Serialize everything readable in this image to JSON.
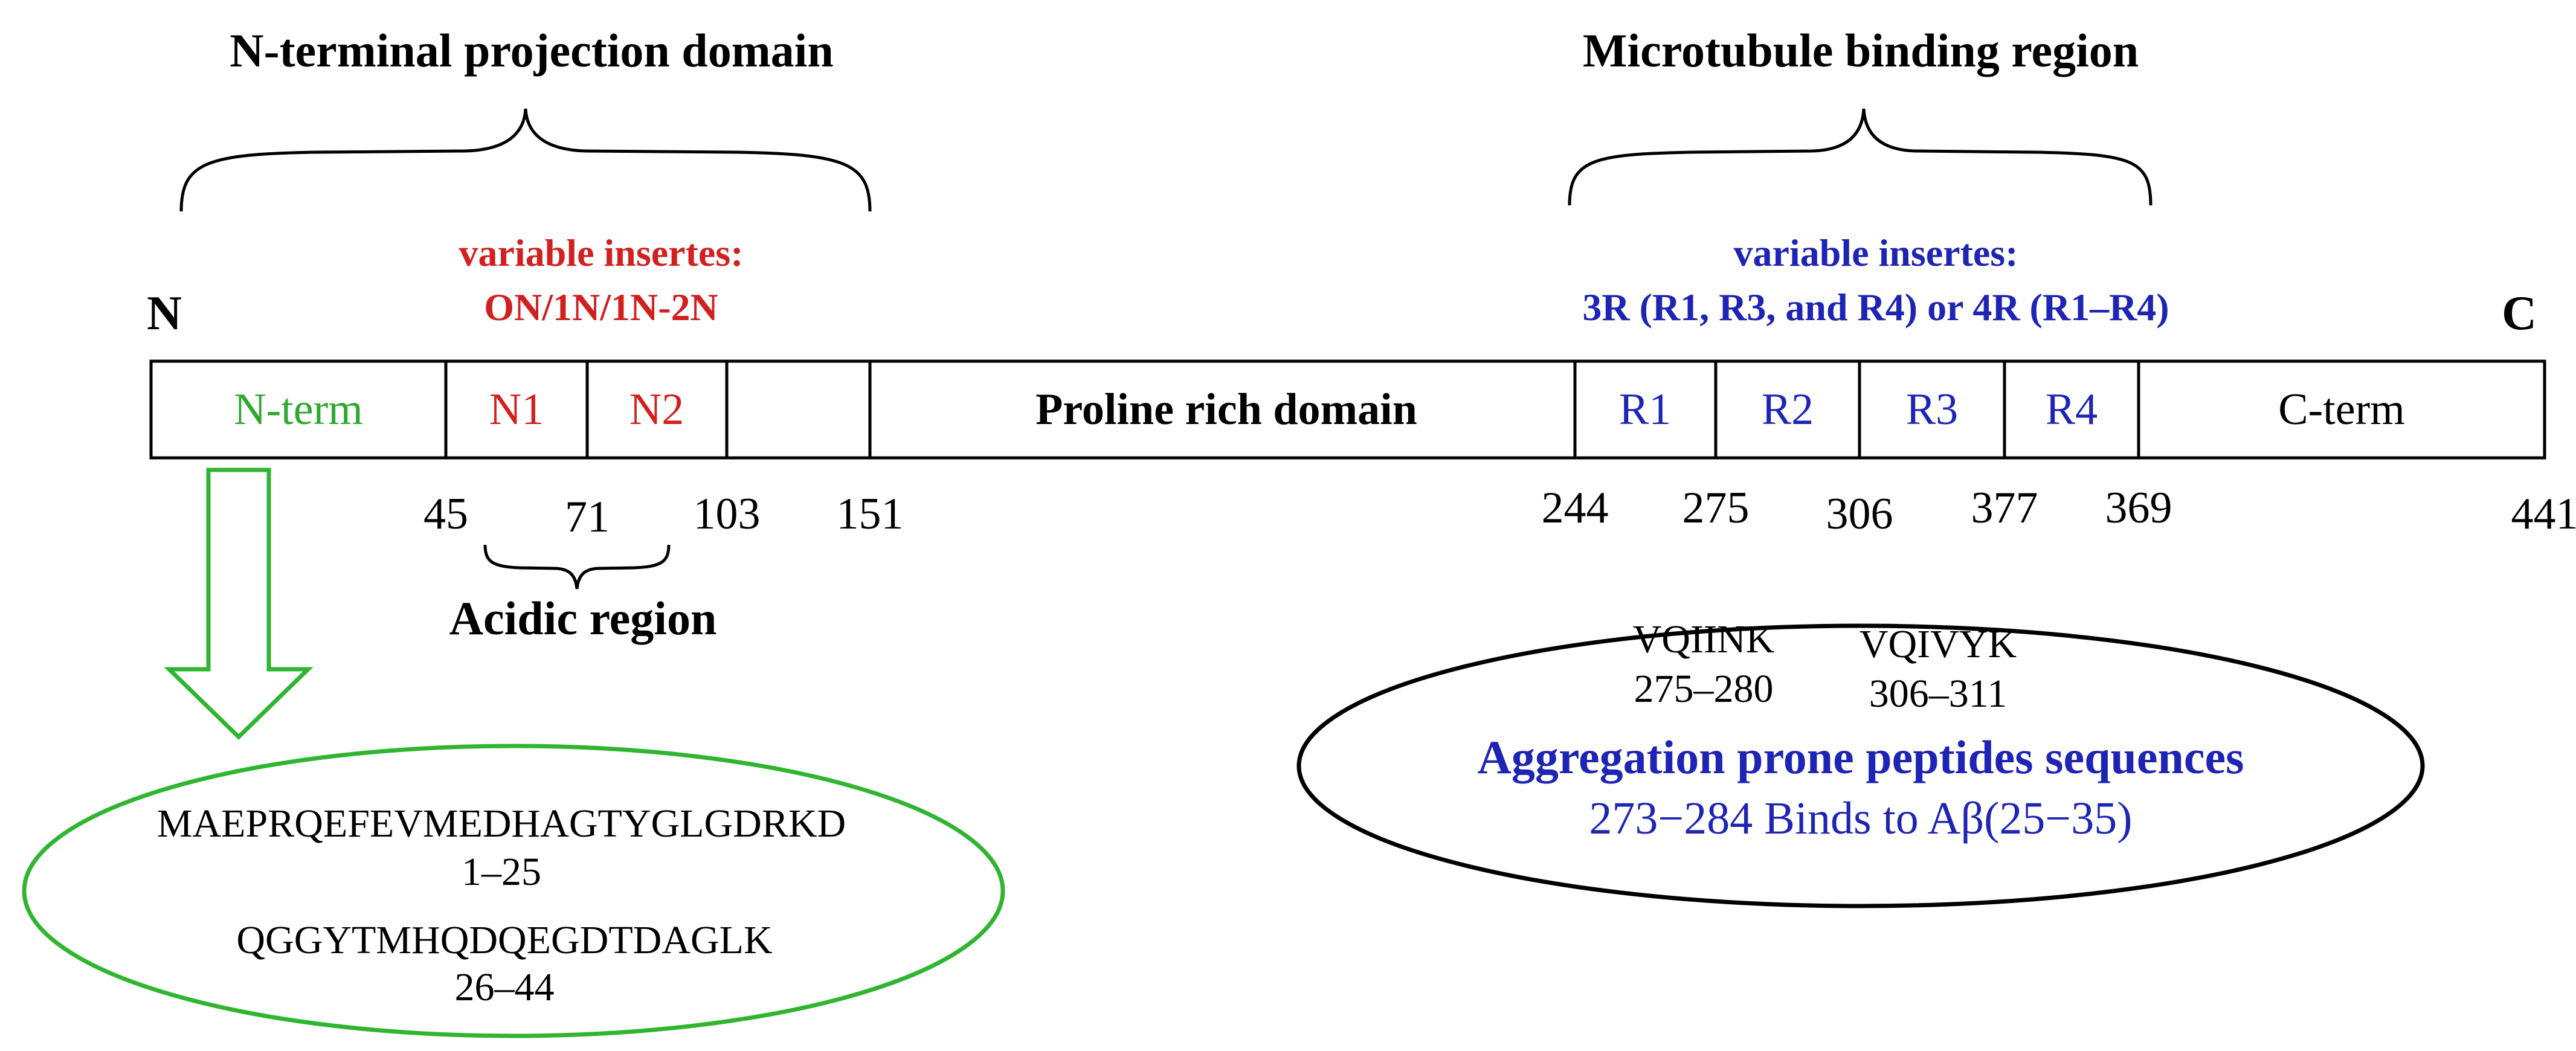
{
  "titles": {
    "n_terminal": "N-terminal projection domain",
    "microtubule": "Microtubule binding region"
  },
  "termini": {
    "n": "N",
    "c": "C"
  },
  "n_inserts": {
    "label": "variable insertes:",
    "value": "ON/1N/1N-2N",
    "color": "#d21f1f"
  },
  "r_inserts": {
    "label": "variable insertes:",
    "value": "3R (R1, R3, and R4) or 4R (R1–R4)",
    "color": "#1e24b4"
  },
  "segments": {
    "nterm": {
      "label": "N-term",
      "color": "#2fa82f"
    },
    "n1": {
      "label": "N1",
      "color": "#d21f1f"
    },
    "n2": {
      "label": "N2",
      "color": "#d21f1f"
    },
    "proline": {
      "label": "Proline rich domain",
      "color": "#000000"
    },
    "r1": {
      "label": "R1",
      "color": "#1e24b4"
    },
    "r2": {
      "label": "R2",
      "color": "#1e24b4"
    },
    "r3": {
      "label": "R3",
      "color": "#1e24b4"
    },
    "r4": {
      "label": "R4",
      "color": "#1e24b4"
    },
    "cterm": {
      "label": "C-term",
      "color": "#000000"
    }
  },
  "positions": [
    "45",
    "71",
    "103",
    "151",
    "244",
    "275",
    "306",
    "377",
    "369",
    "441"
  ],
  "acidic_label": "Acidic region",
  "n_sequence": {
    "seq1": "MAEPRQEFEVMEDHAGTYGLGDRKD",
    "range1": "1–25",
    "seq2": "QGGYTMHQDQEGDTDAGLK",
    "range2": "26–44",
    "color": "#2fb52f"
  },
  "aggregation": {
    "pep1": "VQIINK",
    "range1": "275–280",
    "pep2": "VQIVYK",
    "range2": "306–311",
    "title": "Aggregation prone peptides sequences",
    "binding": "273−284 Binds to Aβ(25−35)",
    "color": "#1e24b4"
  }
}
